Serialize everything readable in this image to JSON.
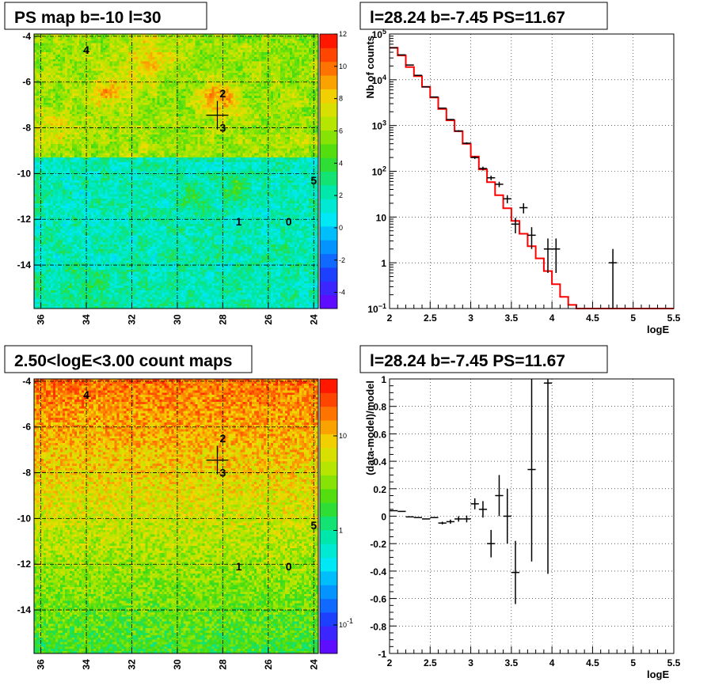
{
  "chart_data": [
    {
      "id": "psmap",
      "type": "heatmap",
      "title": "PS map b=-10 l=30",
      "x_ticks": [
        "36",
        "34",
        "32",
        "30",
        "28",
        "26",
        "24"
      ],
      "y_ticks": [
        "-4",
        "-6",
        "-8",
        "-10",
        "-12",
        "-14"
      ],
      "xlim": [
        36.3,
        23.8
      ],
      "ylim": [
        -15.9,
        -3.9
      ],
      "colorbar": {
        "min": -5,
        "max": 12,
        "ticks": [
          "12",
          "10",
          "8",
          "6",
          "4",
          "2",
          "0",
          "-2",
          "-4"
        ]
      },
      "sources": [
        {
          "label": "4",
          "x": 34.0,
          "y": -4.6
        },
        {
          "label": "2",
          "x": 28.0,
          "y": -6.5
        },
        {
          "label": "3",
          "x": 28.0,
          "y": -8.0
        },
        {
          "label": "5",
          "x": 24.0,
          "y": -10.3
        },
        {
          "label": "1",
          "x": 27.3,
          "y": -12.1
        },
        {
          "label": "0",
          "x": 25.1,
          "y": -12.1
        }
      ],
      "marker": {
        "l": 28.24,
        "b": -7.45
      }
    },
    {
      "id": "spectrum",
      "type": "line",
      "title": "l=28.24 b=-7.45 PS=11.67",
      "xlabel": "logE",
      "ylabel": "Nb of counts",
      "xlim": [
        2,
        5.5
      ],
      "ylim": [
        0.1,
        100000
      ],
      "yscale": "log",
      "grid": true,
      "x_ticks": [
        "2",
        "2.5",
        "3",
        "3.5",
        "4",
        "4.5",
        "5",
        "5.5"
      ],
      "y_ticks": [
        {
          "v": 0.1,
          "base": "10",
          "exp": "−1"
        },
        {
          "v": 1,
          "base": "1",
          "exp": ""
        },
        {
          "v": 10,
          "base": "10",
          "exp": ""
        },
        {
          "v": 100,
          "base": "10",
          "exp": "2"
        },
        {
          "v": 1000,
          "base": "10",
          "exp": "3"
        },
        {
          "v": 10000,
          "base": "10",
          "exp": "4"
        },
        {
          "v": 100000,
          "base": "10",
          "exp": "5"
        }
      ],
      "model": {
        "name": "model",
        "edges": [
          2.0,
          2.1,
          2.2,
          2.3,
          2.4,
          2.5,
          2.6,
          2.7,
          2.8,
          2.9,
          3.0,
          3.1,
          3.2,
          3.3,
          3.4,
          3.5,
          3.6,
          3.7,
          3.8,
          3.9,
          4.0,
          4.1,
          4.2,
          4.3,
          4.4,
          4.5,
          4.6,
          4.7,
          4.8,
          4.9,
          5.0,
          5.1,
          5.2,
          5.3,
          5.4,
          5.5
        ],
        "values": [
          50000,
          34000,
          19000,
          12000,
          7000,
          4100,
          2300,
          1300,
          750,
          400,
          210,
          110,
          58,
          30,
          15.5,
          8.2,
          4.3,
          2.3,
          1.25,
          0.66,
          0.34,
          0.18,
          0.12,
          0.1,
          0.1,
          0.1,
          0.1,
          0.1,
          0.1,
          0.1,
          0.1,
          0.1,
          0.1,
          0.1,
          0.1
        ]
      },
      "data": {
        "name": "data",
        "points": [
          {
            "x": 2.05,
            "y": 50000,
            "lo": 49700,
            "hi": 50300
          },
          {
            "x": 2.15,
            "y": 35000,
            "lo": 34800,
            "hi": 35200
          },
          {
            "x": 2.25,
            "y": 21000,
            "lo": 20800,
            "hi": 21200
          },
          {
            "x": 2.35,
            "y": 12500,
            "lo": 12400,
            "hi": 12600
          },
          {
            "x": 2.45,
            "y": 7000,
            "lo": 6920,
            "hi": 7080
          },
          {
            "x": 2.55,
            "y": 4200,
            "lo": 4130,
            "hi": 4270
          },
          {
            "x": 2.65,
            "y": 2400,
            "lo": 2350,
            "hi": 2450
          },
          {
            "x": 2.75,
            "y": 1350,
            "lo": 1310,
            "hi": 1390
          },
          {
            "x": 2.85,
            "y": 760,
            "lo": 730,
            "hi": 790
          },
          {
            "x": 2.95,
            "y": 410,
            "lo": 390,
            "hi": 430
          },
          {
            "x": 3.05,
            "y": 200,
            "lo": 186,
            "hi": 214
          },
          {
            "x": 3.15,
            "y": 115,
            "lo": 104,
            "hi": 126
          },
          {
            "x": 3.25,
            "y": 72,
            "lo": 64,
            "hi": 80
          },
          {
            "x": 3.35,
            "y": 52,
            "lo": 45,
            "hi": 59
          },
          {
            "x": 3.45,
            "y": 25,
            "lo": 20,
            "hi": 30
          },
          {
            "x": 3.55,
            "y": 7,
            "lo": 4.4,
            "hi": 9.6
          },
          {
            "x": 3.65,
            "y": 16,
            "lo": 12,
            "hi": 20
          },
          {
            "x": 3.75,
            "y": 4,
            "lo": 2,
            "hi": 6
          },
          {
            "x": 3.95,
            "y": 2,
            "lo": 0.6,
            "hi": 3.4
          },
          {
            "x": 4.05,
            "y": 2,
            "lo": 0.6,
            "hi": 3.4
          },
          {
            "x": 4.75,
            "y": 1,
            "lo": 0.1,
            "hi": 2
          }
        ]
      }
    },
    {
      "id": "countmap",
      "type": "heatmap",
      "title": "2.50<logE<3.00 count maps",
      "x_ticks": [
        "36",
        "34",
        "32",
        "30",
        "28",
        "26",
        "24"
      ],
      "y_ticks": [
        "-4",
        "-6",
        "-8",
        "-10",
        "-12",
        "-14"
      ],
      "xlim": [
        36.3,
        23.8
      ],
      "ylim": [
        -15.9,
        -3.9
      ],
      "colorbar": {
        "scale": "log",
        "min": 0.05,
        "max": 40,
        "ticks": [
          {
            "v": 10,
            "base": "10",
            "exp": ""
          },
          {
            "v": 1,
            "base": "1",
            "exp": ""
          },
          {
            "v": 0.1,
            "base": "10",
            "exp": "-1"
          }
        ]
      },
      "sources": [
        {
          "label": "4",
          "x": 34.0,
          "y": -4.6
        },
        {
          "label": "2",
          "x": 28.0,
          "y": -6.5
        },
        {
          "label": "3",
          "x": 28.0,
          "y": -8.0
        },
        {
          "label": "5",
          "x": 24.0,
          "y": -10.3
        },
        {
          "label": "1",
          "x": 27.3,
          "y": -12.1
        },
        {
          "label": "0",
          "x": 25.1,
          "y": -12.1
        }
      ],
      "marker": {
        "l": 28.24,
        "b": -7.45
      }
    },
    {
      "id": "residuals",
      "type": "scatter",
      "title": "l=28.24 b=-7.45 PS=11.67",
      "xlabel": "logE",
      "ylabel": "(data-model)/model",
      "xlim": [
        2,
        5.5
      ],
      "ylim": [
        -1,
        1
      ],
      "grid": true,
      "x_ticks": [
        "2",
        "2.5",
        "3",
        "3.5",
        "4",
        "4.5",
        "5",
        "5.5"
      ],
      "y_ticks": [
        "1",
        "0.8",
        "0.6",
        "0.4",
        "0.2",
        "0",
        "-0.2",
        "-0.4",
        "-0.6",
        "-0.8",
        "-1"
      ],
      "points": [
        {
          "x": 2.05,
          "y": 0.04,
          "lo": 0.04,
          "hi": 0.04
        },
        {
          "x": 2.15,
          "y": 0.035,
          "lo": 0.035,
          "hi": 0.035
        },
        {
          "x": 2.25,
          "y": -0.005,
          "lo": -0.005,
          "hi": -0.005
        },
        {
          "x": 2.35,
          "y": -0.01,
          "lo": -0.01,
          "hi": -0.01
        },
        {
          "x": 2.45,
          "y": -0.02,
          "lo": -0.02,
          "hi": -0.02
        },
        {
          "x": 2.55,
          "y": -0.01,
          "lo": -0.01,
          "hi": -0.01
        },
        {
          "x": 2.65,
          "y": -0.05,
          "lo": -0.06,
          "hi": -0.04
        },
        {
          "x": 2.75,
          "y": -0.04,
          "lo": -0.055,
          "hi": -0.025
        },
        {
          "x": 2.85,
          "y": -0.02,
          "lo": -0.04,
          "hi": 0.0
        },
        {
          "x": 2.95,
          "y": -0.02,
          "lo": -0.045,
          "hi": 0.005
        },
        {
          "x": 3.05,
          "y": 0.09,
          "lo": 0.05,
          "hi": 0.13
        },
        {
          "x": 3.15,
          "y": 0.05,
          "lo": -0.01,
          "hi": 0.11
        },
        {
          "x": 3.25,
          "y": -0.2,
          "lo": -0.3,
          "hi": -0.1
        },
        {
          "x": 3.35,
          "y": 0.15,
          "lo": 0.0,
          "hi": 0.3
        },
        {
          "x": 3.45,
          "y": 0.0,
          "lo": -0.2,
          "hi": 0.2
        },
        {
          "x": 3.55,
          "y": -0.41,
          "lo": -0.64,
          "hi": -0.18
        },
        {
          "x": 3.75,
          "y": 0.34,
          "lo": -0.33,
          "hi": 1.0
        },
        {
          "x": 3.95,
          "y": 0.97,
          "lo": -0.42,
          "hi": 1.0
        }
      ]
    }
  ]
}
